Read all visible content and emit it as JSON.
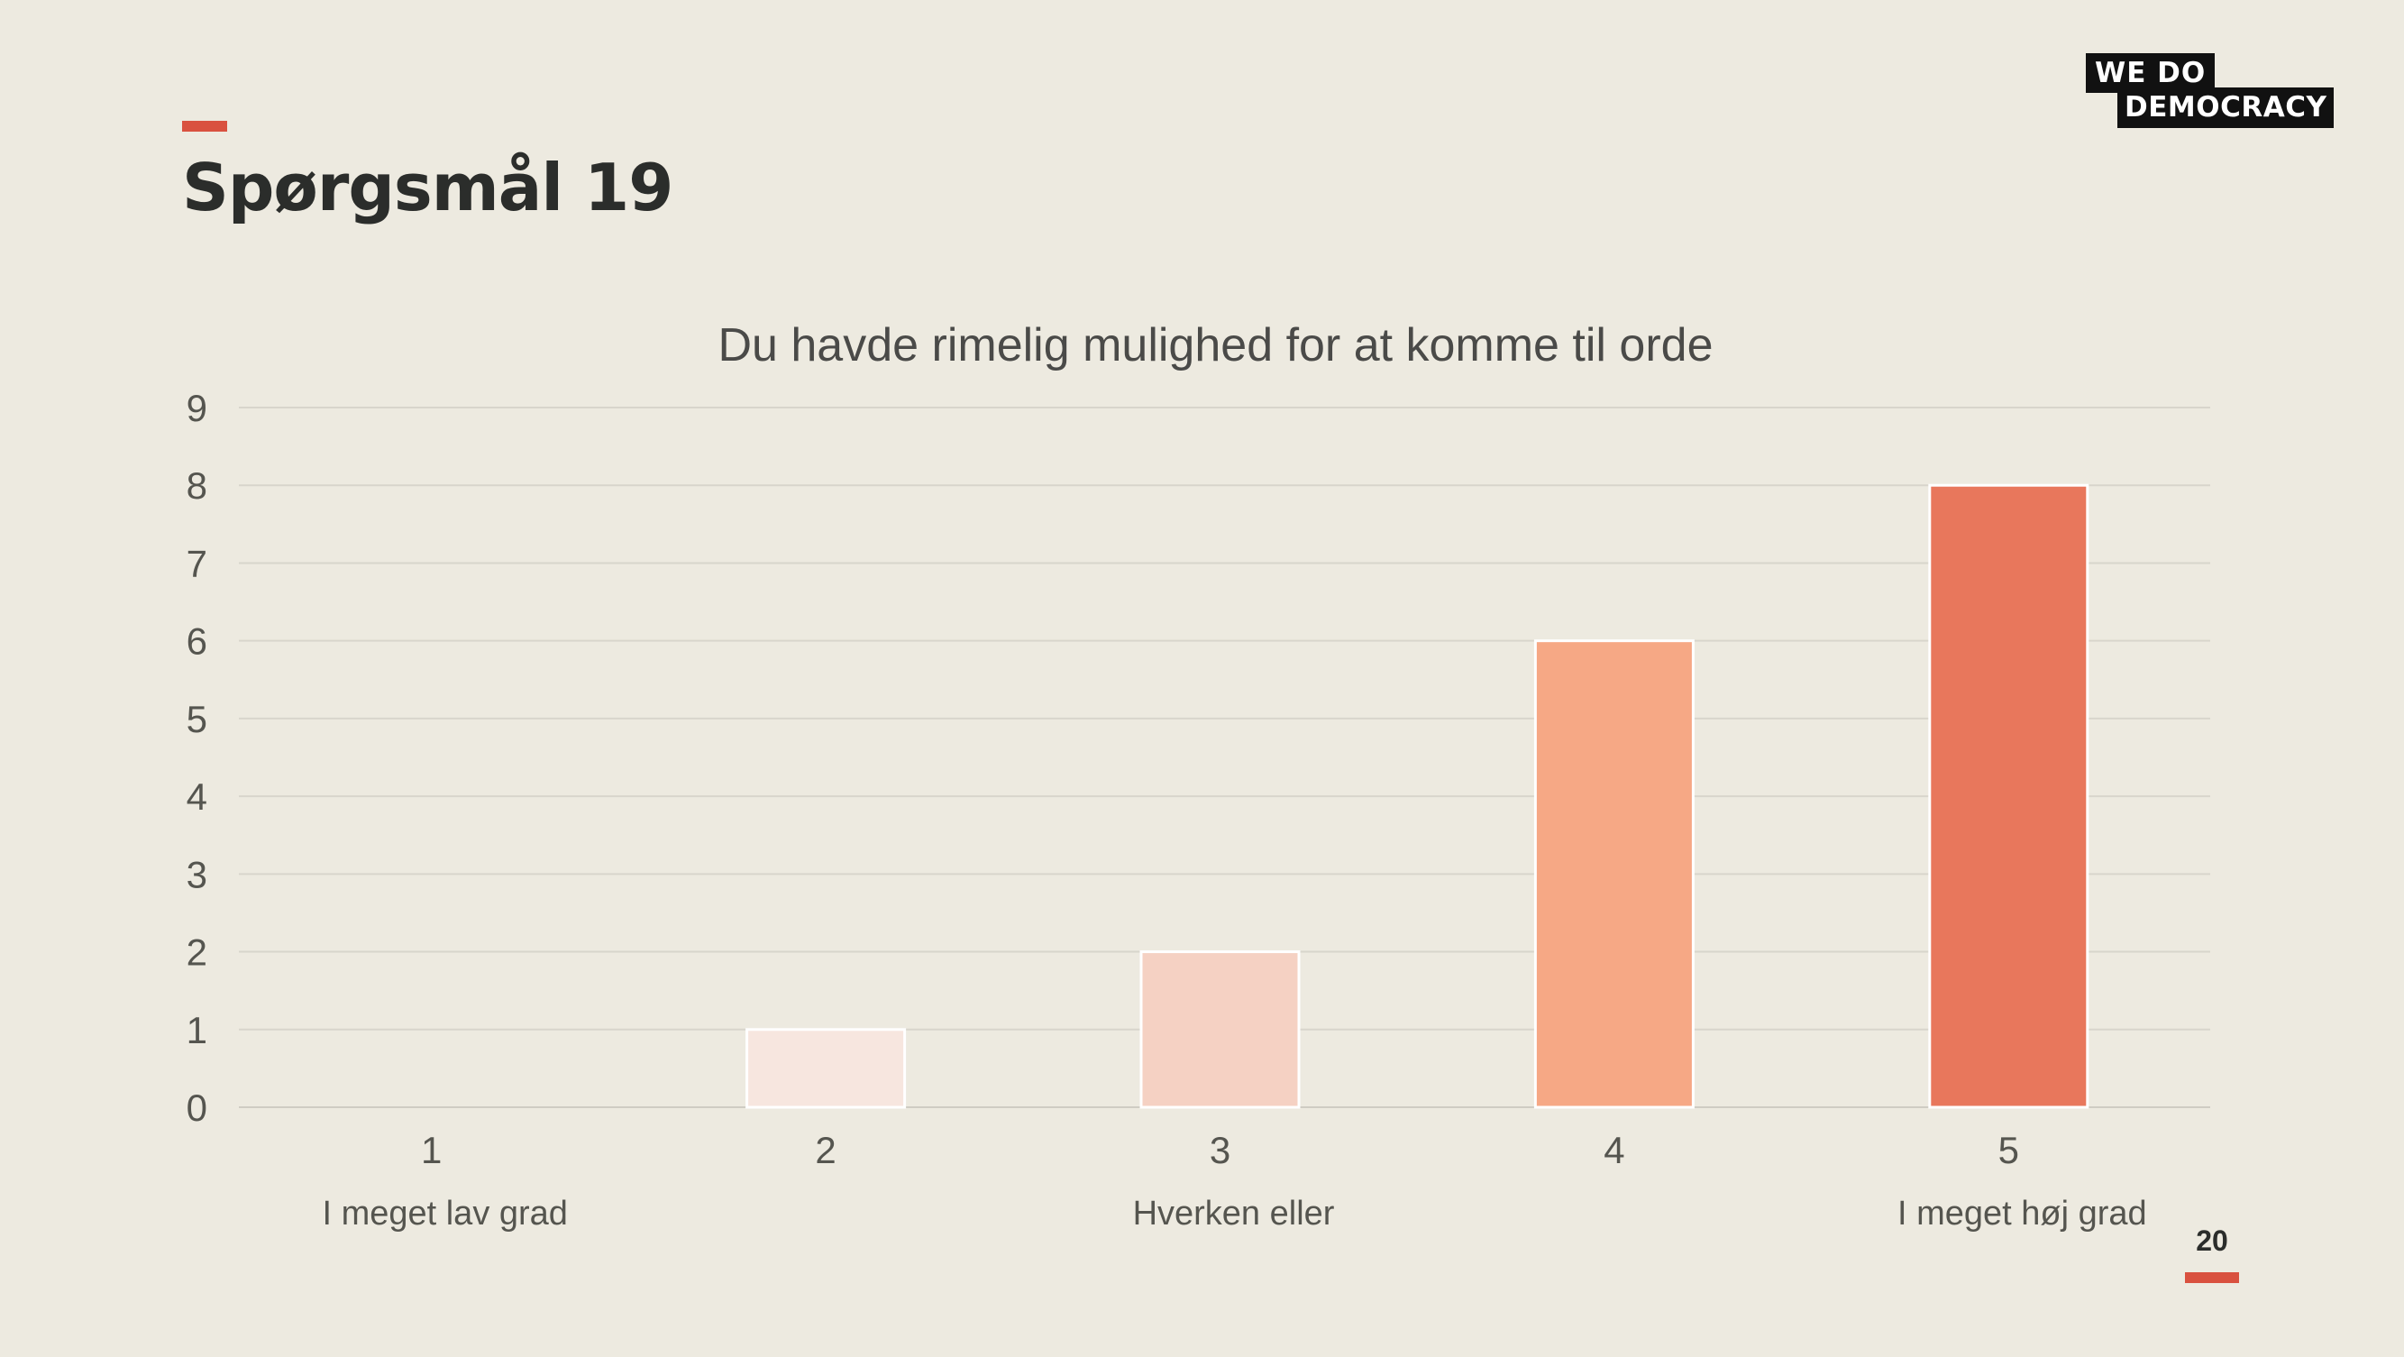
{
  "slide": {
    "title": "Spørgsmål 19",
    "page_number": "20"
  },
  "logo": {
    "line1": "WE  DO",
    "line2": "DEMOCRACY"
  },
  "colors": {
    "background": "#edeae0",
    "accent": "#d9513f",
    "text": "#2b2d2b"
  },
  "chart_data": {
    "type": "bar",
    "title": "Du havde rimelig mulighed for at komme til orde",
    "categories": [
      "1",
      "2",
      "3",
      "4",
      "5"
    ],
    "category_sublabels": [
      "I meget lav grad",
      "",
      "Hverken eller",
      "",
      "I meget høj grad"
    ],
    "values": [
      0,
      1,
      2,
      6,
      8
    ],
    "bar_colors": [
      "#f7e6df",
      "#f7e6df",
      "#f5d1c3",
      "#f6a885",
      "#e8775c"
    ],
    "ylim": [
      0,
      9
    ],
    "yticks": [
      0,
      1,
      2,
      3,
      4,
      5,
      6,
      7,
      8,
      9
    ],
    "xlabel": "",
    "ylabel": "",
    "grid": true,
    "legend": "none"
  }
}
